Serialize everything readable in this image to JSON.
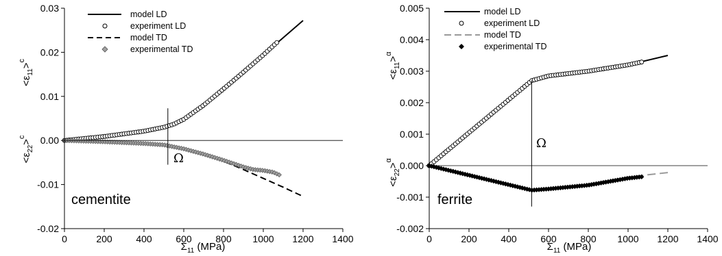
{
  "chart_data": [
    {
      "type": "line",
      "panel_label": "cementite",
      "xlabel": "Σ11 (MPa)",
      "ylabel_upper": "<ε11>c",
      "ylabel_lower": "<ε22>c",
      "xlim": [
        0,
        1400
      ],
      "ylim": [
        -0.02,
        0.03
      ],
      "xticks": [
        "0",
        "200",
        "400",
        "600",
        "800",
        "1000",
        "1200",
        "1400"
      ],
      "yticks": [
        "-0.02",
        "-0.01",
        "0.00",
        "0.01",
        "0.02",
        "0.03"
      ],
      "xtick_values": [
        0,
        200,
        400,
        600,
        800,
        1000,
        1200,
        1400
      ],
      "ytick_values": [
        -0.02,
        -0.01,
        0.0,
        0.01,
        0.02,
        0.03
      ],
      "annotation": "Ω",
      "annotation_x": 520,
      "annotation_vline": [
        -0.0055,
        0.0073
      ],
      "legend_position": "top-left",
      "series": [
        {
          "name": "model LD",
          "kind": "solid",
          "color": "#000000",
          "x": [
            0,
            200,
            400,
            500,
            550,
            600,
            700,
            800,
            900,
            1000,
            1100,
            1200
          ],
          "y": [
            0,
            0.0009,
            0.0021,
            0.003,
            0.0037,
            0.0048,
            0.008,
            0.0117,
            0.0155,
            0.0194,
            0.0233,
            0.0272
          ]
        },
        {
          "name": "experiment LD",
          "kind": "circles",
          "color": "#000000",
          "x": [
            0,
            200,
            400,
            500,
            550,
            600,
            700,
            800,
            900,
            1000,
            1075
          ],
          "y": [
            0,
            0.0009,
            0.0021,
            0.003,
            0.0037,
            0.0048,
            0.008,
            0.0117,
            0.0155,
            0.0194,
            0.0225
          ]
        },
        {
          "name": "model TD",
          "kind": "dashed",
          "color": "#000000",
          "x": [
            0,
            200,
            400,
            500,
            600,
            700,
            800,
            900,
            1000,
            1100,
            1200
          ],
          "y": [
            0,
            -0.0003,
            -0.0007,
            -0.001,
            -0.0019,
            -0.0031,
            -0.0047,
            -0.0066,
            -0.0086,
            -0.0106,
            -0.0127
          ]
        },
        {
          "name": "experimental TD",
          "kind": "diamonds",
          "color": "#a0a0a0",
          "x": [
            0,
            200,
            400,
            500,
            600,
            700,
            800,
            900,
            950,
            1000,
            1050,
            1080
          ],
          "y": [
            0,
            -0.0003,
            -0.0007,
            -0.001,
            -0.0019,
            -0.0031,
            -0.0045,
            -0.006,
            -0.0066,
            -0.0068,
            -0.0072,
            -0.0078
          ]
        }
      ]
    },
    {
      "type": "line",
      "panel_label": "ferrite",
      "xlabel": "Σ11 (MPa)",
      "ylabel_upper": "<ε11>α",
      "ylabel_lower": "<ε22>α",
      "xlim": [
        0,
        1400
      ],
      "ylim": [
        -0.002,
        0.005
      ],
      "xticks": [
        "0",
        "200",
        "400",
        "600",
        "800",
        "1000",
        "1200",
        "1400"
      ],
      "yticks": [
        "-0.002",
        "-0.001",
        "0.000",
        "0.001",
        "0.002",
        "0.003",
        "0.004",
        "0.005"
      ],
      "xtick_values": [
        0,
        200,
        400,
        600,
        800,
        1000,
        1200,
        1400
      ],
      "ytick_values": [
        -0.002,
        -0.001,
        0.0,
        0.001,
        0.002,
        0.003,
        0.004,
        0.005
      ],
      "annotation": "Ω",
      "annotation_x": 515,
      "annotation_vline": [
        -0.0013,
        0.0027
      ],
      "legend_position": "top-left",
      "series": [
        {
          "name": "model LD",
          "kind": "solid",
          "color": "#000000",
          "x": [
            0,
            515,
            600,
            800,
            1000,
            1200
          ],
          "y": [
            0,
            0.0027,
            0.00285,
            0.003,
            0.0032,
            0.0035
          ]
        },
        {
          "name": "experiment LD",
          "kind": "circles",
          "color": "#000000",
          "x": [
            0,
            515,
            600,
            800,
            1000,
            1075
          ],
          "y": [
            0,
            0.0027,
            0.00285,
            0.003,
            0.0032,
            0.0033
          ]
        },
        {
          "name": "model TD",
          "kind": "dashed",
          "color": "#999999",
          "x": [
            0,
            515,
            600,
            800,
            1000,
            1200
          ],
          "y": [
            0,
            -0.00078,
            -0.00072,
            -0.00058,
            -0.00036,
            -0.00022
          ]
        },
        {
          "name": "experimental TD",
          "kind": "diamonds",
          "color": "#000000",
          "x": [
            0,
            515,
            600,
            800,
            1000,
            1075
          ],
          "y": [
            0,
            -0.00078,
            -0.00074,
            -0.00062,
            -0.0004,
            -0.00035
          ]
        }
      ]
    }
  ]
}
